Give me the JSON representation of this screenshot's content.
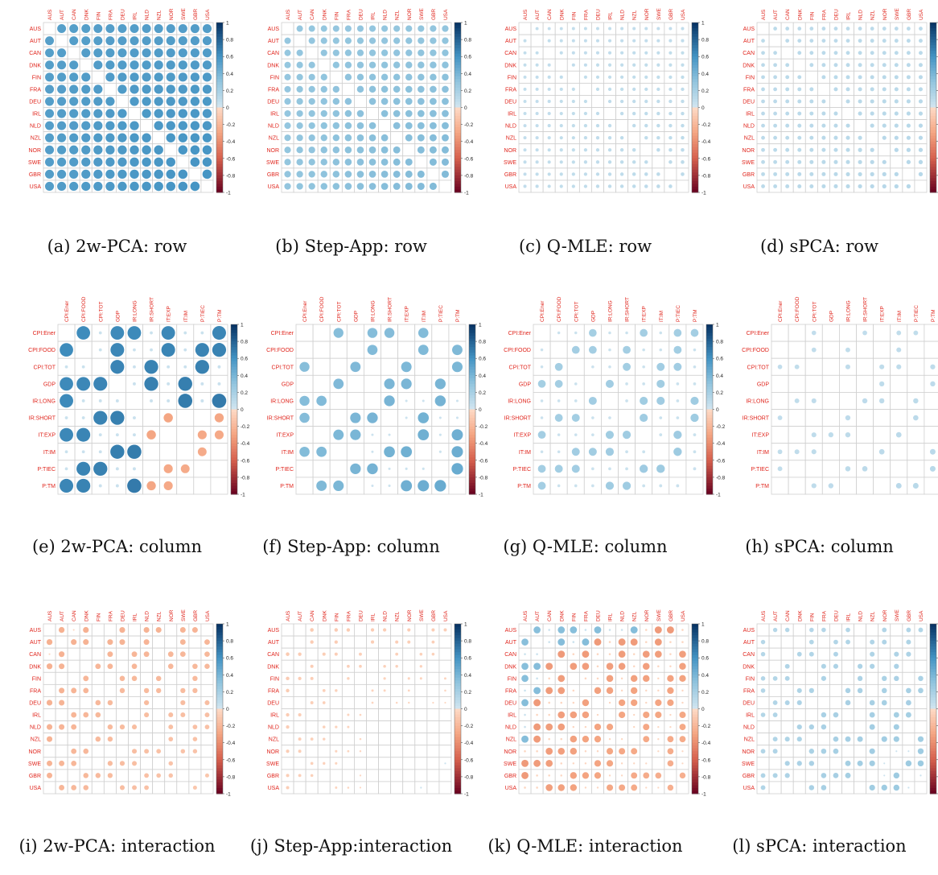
{
  "panels": [
    {
      "caption": "(a) 2w-PCA: row",
      "matrix": "row",
      "method": "2w-PCA",
      "seed": 11
    },
    {
      "caption": "(b) Step-App: row",
      "matrix": "row",
      "method": "Step-App",
      "seed": 23
    },
    {
      "caption": "(c) Q-MLE: row",
      "matrix": "row",
      "method": "Q-MLE",
      "seed": 37
    },
    {
      "caption": "(d) sPCA: row",
      "matrix": "row",
      "method": "sPCA",
      "seed": 41
    },
    {
      "caption": "(e) 2w-PCA: column",
      "matrix": "column",
      "method": "2w-PCA",
      "seed": 53
    },
    {
      "caption": "(f) Step-App: column",
      "matrix": "column",
      "method": "Step-App",
      "seed": 67
    },
    {
      "caption": "(g) Q-MLE: column",
      "matrix": "column",
      "method": "Q-MLE",
      "seed": 71
    },
    {
      "caption": "(h) sPCA: column",
      "matrix": "column",
      "method": "sPCA",
      "seed": 83
    },
    {
      "caption": "(i) 2w-PCA: interaction",
      "matrix": "interaction",
      "method": "2w-PCA",
      "seed": 97
    },
    {
      "caption": "(j) Step-App:interaction",
      "matrix": "interaction",
      "method": "Step-App",
      "seed": 101
    },
    {
      "caption": "(k) Q-MLE: interaction",
      "matrix": "interaction",
      "method": "Q-MLE",
      "seed": 113
    },
    {
      "caption": "(l) sPCA: interaction",
      "matrix": "interaction",
      "method": "sPCA",
      "seed": 127
    }
  ],
  "chart_data": {
    "type": "heatmap",
    "countries": [
      "AUS",
      "AUT",
      "CAN",
      "DNK",
      "FIN",
      "FRA",
      "DEU",
      "IRL",
      "NLD",
      "NZL",
      "NOR",
      "SWE",
      "GBR",
      "USA"
    ],
    "indicators": [
      "CPI:Ener",
      "CPI:FOOD",
      "CPI:TOT",
      "GDP",
      "IR:LONG",
      "IR:SHORT",
      "IT:EXP",
      "IT:IM",
      "P:TIEC",
      "P:TM"
    ],
    "colorbar_ticks": [
      "1",
      "0.8",
      "0.6",
      "0.4",
      "0.2",
      "0",
      "-0.2",
      "-0.4",
      "-0.6",
      "-0.8",
      "-1"
    ],
    "color_low": "#67001f",
    "color_mid": "#f7f7f7",
    "color_high": "#053061",
    "label_color": "#e0251c",
    "value_range": [
      -1,
      1
    ]
  }
}
